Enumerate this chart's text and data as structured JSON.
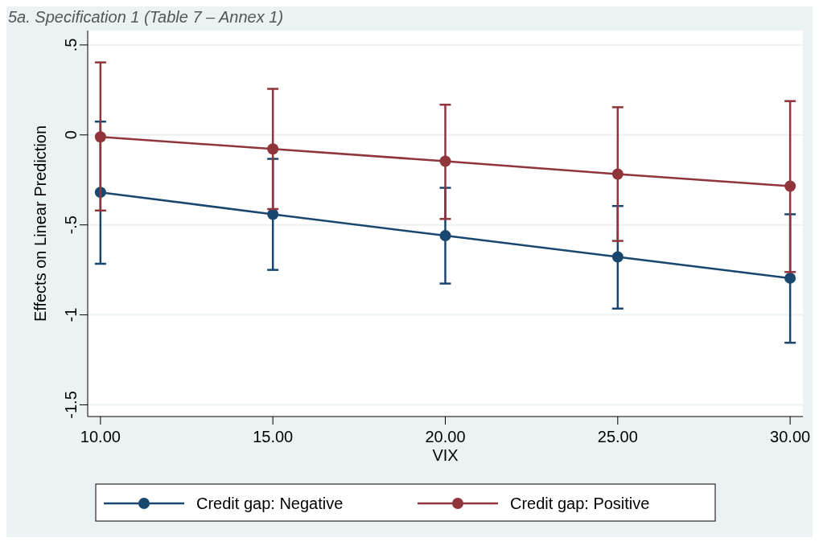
{
  "chart_data": {
    "type": "line",
    "title": "5a. Specification 1 (Table 7 – Annex 1)",
    "xlabel": "VIX",
    "ylabel": "Effects on Linear Prediction",
    "x": [
      10,
      15,
      20,
      25,
      30
    ],
    "xlim": [
      9.63,
      30.37
    ],
    "ylim": [
      -1.565,
      0.58
    ],
    "xticks": [
      {
        "value": 10,
        "label": "10.00"
      },
      {
        "value": 15,
        "label": "15.00"
      },
      {
        "value": 20,
        "label": "20.00"
      },
      {
        "value": 25,
        "label": "25.00"
      },
      {
        "value": 30,
        "label": "30.00"
      }
    ],
    "yticks": [
      {
        "value": -1.5,
        "label": "-1.5"
      },
      {
        "value": -1,
        "label": "-1"
      },
      {
        "value": -0.5,
        "label": "-.5"
      },
      0,
      {
        "value": 0.5,
        "label": ".5"
      }
    ],
    "grid": "y",
    "legend": "bottom",
    "marker": "circle",
    "line_style": "solid",
    "series": [
      {
        "name": "Credit gap: Negative",
        "color": "#1a476f",
        "values": [
          -0.319,
          -0.441,
          -0.56,
          -0.678,
          -0.796
        ],
        "errors": [
          [
            -0.716,
            0.074
          ],
          [
            -0.75,
            -0.133
          ],
          [
            -0.826,
            -0.294
          ],
          [
            -0.965,
            -0.395
          ],
          [
            -1.155,
            -0.441
          ]
        ]
      },
      {
        "name": "Credit gap: Positive",
        "color": "#90353b",
        "values": [
          -0.011,
          -0.078,
          -0.146,
          -0.218,
          -0.285
        ],
        "errors": [
          [
            -0.42,
            0.403
          ],
          [
            -0.412,
            0.256
          ],
          [
            -0.467,
            0.168
          ],
          [
            -0.589,
            0.154
          ],
          [
            -0.762,
            0.188
          ]
        ]
      }
    ]
  }
}
